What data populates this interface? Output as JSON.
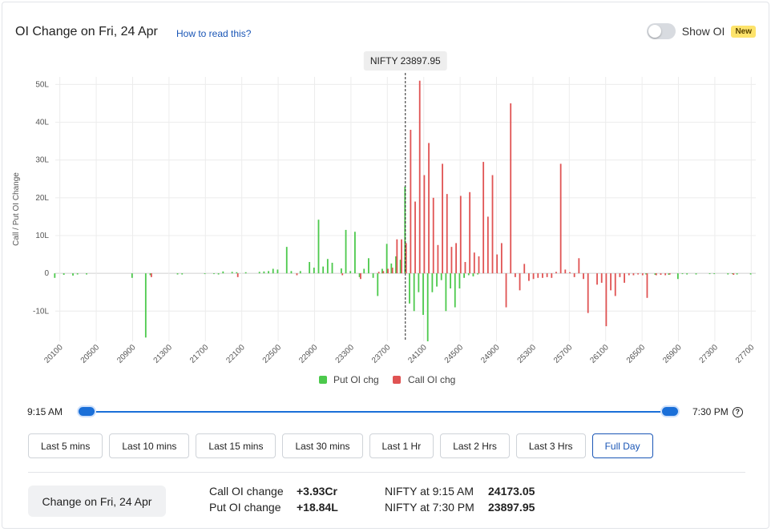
{
  "header": {
    "title": "OI Change on Fri, 24 Apr",
    "how_to_link": "How to read this?",
    "toggle_label": "Show OI",
    "badge": "New"
  },
  "chart_data": {
    "type": "bar",
    "ylabel": "Call / Put OI Change",
    "ylim": [
      -18,
      52
    ],
    "y_ticks": [
      50,
      40,
      30,
      20,
      10,
      0,
      -10
    ],
    "y_tick_labels": [
      "50L",
      "40L",
      "30L",
      "20L",
      "10L",
      "0",
      "-10L"
    ],
    "x_range": [
      20050,
      27750
    ],
    "x_ticks": [
      20100,
      20500,
      20900,
      21300,
      21700,
      22100,
      22500,
      22900,
      23300,
      23700,
      24100,
      24500,
      24900,
      25300,
      25700,
      26100,
      26500,
      26900,
      27300,
      27700
    ],
    "strike_step": 50,
    "marker": {
      "label": "NIFTY 23897.95",
      "x": 23897.95
    },
    "legend": [
      "Put OI chg",
      "Call OI chg"
    ],
    "legend_position": "bottom",
    "colors": {
      "put": "#4cc94c",
      "call": "#e05353"
    },
    "series": [
      {
        "name": "Put OI chg",
        "points": [
          [
            20050,
            -1.2
          ],
          [
            20150,
            -0.4
          ],
          [
            20250,
            -0.6
          ],
          [
            20300,
            -0.3
          ],
          [
            20400,
            -0.3
          ],
          [
            20900,
            -1.2
          ],
          [
            21050,
            -17
          ],
          [
            21100,
            -0.5
          ],
          [
            21400,
            -0.3
          ],
          [
            21450,
            -0.3
          ],
          [
            21700,
            -0.2
          ],
          [
            21800,
            -0.2
          ],
          [
            21850,
            -0.3
          ],
          [
            21900,
            0.5
          ],
          [
            22000,
            0.4
          ],
          [
            22050,
            0.3
          ],
          [
            22150,
            0.3
          ],
          [
            22300,
            0.4
          ],
          [
            22350,
            0.5
          ],
          [
            22400,
            0.6
          ],
          [
            22450,
            1.2
          ],
          [
            22500,
            1
          ],
          [
            22600,
            7
          ],
          [
            22650,
            0.6
          ],
          [
            22750,
            0.6
          ],
          [
            22850,
            3
          ],
          [
            22900,
            1.5
          ],
          [
            22950,
            14.2
          ],
          [
            23000,
            1.8
          ],
          [
            23050,
            3.8
          ],
          [
            23100,
            2.8
          ],
          [
            23200,
            1.3
          ],
          [
            23250,
            11.5
          ],
          [
            23300,
            0.6
          ],
          [
            23350,
            11
          ],
          [
            23400,
            -1
          ],
          [
            23450,
            1.2
          ],
          [
            23500,
            4
          ],
          [
            23550,
            -1.2
          ],
          [
            23600,
            -6
          ],
          [
            23650,
            1.2
          ],
          [
            23700,
            7.8
          ],
          [
            23750,
            2.6
          ],
          [
            23800,
            4.5
          ],
          [
            23850,
            3.6
          ],
          [
            23900,
            23
          ],
          [
            23950,
            -8
          ],
          [
            24000,
            -10
          ],
          [
            24050,
            -5
          ],
          [
            24100,
            -11
          ],
          [
            24150,
            -18
          ],
          [
            24200,
            -5
          ],
          [
            24250,
            -3.5
          ],
          [
            24300,
            -1.8
          ],
          [
            24350,
            -10
          ],
          [
            24400,
            -4
          ],
          [
            24450,
            -9
          ],
          [
            24500,
            -4
          ],
          [
            24550,
            -1.2
          ],
          [
            24600,
            -0.5
          ],
          [
            24650,
            -0.8
          ],
          [
            24700,
            -0.3
          ],
          [
            26550,
            -0.3
          ],
          [
            26650,
            -0.4
          ],
          [
            26800,
            -0.4
          ],
          [
            26900,
            -1.5
          ],
          [
            26950,
            -0.2
          ],
          [
            27000,
            -0.3
          ],
          [
            27100,
            -0.3
          ],
          [
            27250,
            -0.2
          ],
          [
            27300,
            -0.2
          ],
          [
            27450,
            -0.3
          ],
          [
            27500,
            -0.2
          ],
          [
            27550,
            -0.3
          ],
          [
            27700,
            -0.3
          ]
        ]
      },
      {
        "name": "Call OI chg",
        "points": [
          [
            21100,
            -1
          ],
          [
            22050,
            -1
          ],
          [
            22700,
            -0.5
          ],
          [
            23200,
            -0.5
          ],
          [
            23400,
            -1.5
          ],
          [
            23600,
            0.4
          ],
          [
            23650,
            0.6
          ],
          [
            23700,
            1.2
          ],
          [
            23750,
            1.5
          ],
          [
            23800,
            9
          ],
          [
            23850,
            9
          ],
          [
            23900,
            8
          ],
          [
            23950,
            38
          ],
          [
            24000,
            19
          ],
          [
            24050,
            51
          ],
          [
            24100,
            26
          ],
          [
            24150,
            34.5
          ],
          [
            24200,
            20
          ],
          [
            24250,
            7.5
          ],
          [
            24300,
            29
          ],
          [
            24350,
            21
          ],
          [
            24400,
            7
          ],
          [
            24450,
            8
          ],
          [
            24500,
            20.5
          ],
          [
            24550,
            3
          ],
          [
            24600,
            21.5
          ],
          [
            24650,
            5.5
          ],
          [
            24700,
            4.5
          ],
          [
            24750,
            29.5
          ],
          [
            24800,
            15
          ],
          [
            24850,
            26
          ],
          [
            24900,
            5
          ],
          [
            24950,
            8
          ],
          [
            25000,
            -9
          ],
          [
            25050,
            45
          ],
          [
            25100,
            -1
          ],
          [
            25150,
            -4.5
          ],
          [
            25200,
            2.5
          ],
          [
            25250,
            -2
          ],
          [
            25300,
            -1.5
          ],
          [
            25350,
            -1.2
          ],
          [
            25400,
            -1.2
          ],
          [
            25450,
            -1
          ],
          [
            25500,
            -1.2
          ],
          [
            25550,
            0.4
          ],
          [
            25600,
            29
          ],
          [
            25650,
            1
          ],
          [
            25700,
            0.3
          ],
          [
            25750,
            -1
          ],
          [
            25800,
            4
          ],
          [
            25850,
            -1.5
          ],
          [
            25900,
            -10.5
          ],
          [
            26000,
            -3
          ],
          [
            26050,
            -2.5
          ],
          [
            26100,
            -14
          ],
          [
            26150,
            -4.5
          ],
          [
            26200,
            -6
          ],
          [
            26250,
            -1
          ],
          [
            26300,
            -2.5
          ],
          [
            26350,
            -0.5
          ],
          [
            26400,
            -0.5
          ],
          [
            26450,
            -0.3
          ],
          [
            26500,
            -0.5
          ],
          [
            26550,
            -6.5
          ],
          [
            26650,
            -0.5
          ],
          [
            26700,
            -0.4
          ],
          [
            26750,
            -0.5
          ],
          [
            26800,
            -0.3
          ],
          [
            27500,
            -0.4
          ]
        ]
      }
    ]
  },
  "slider": {
    "start_label": "9:15 AM",
    "end_label": "7:30 PM",
    "help_icon": "question-circle-icon"
  },
  "ranges": [
    {
      "label": "Last 5 mins",
      "active": false
    },
    {
      "label": "Last 10 mins",
      "active": false
    },
    {
      "label": "Last 15 mins",
      "active": false
    },
    {
      "label": "Last 30 mins",
      "active": false
    },
    {
      "label": "Last 1 Hr",
      "active": false
    },
    {
      "label": "Last 2 Hrs",
      "active": false
    },
    {
      "label": "Last 3 Hrs",
      "active": false
    },
    {
      "label": "Full Day",
      "active": true
    }
  ],
  "summary": {
    "change_button": "Change on Fri, 24 Apr",
    "call_label": "Call OI change",
    "call_value": "+3.93Cr",
    "put_label": "Put OI change",
    "put_value": "+18.84L",
    "nifty_start_label": "NIFTY at 9:15 AM",
    "nifty_start_value": "24173.05",
    "nifty_end_label": "NIFTY at 7:30 PM",
    "nifty_end_value": "23897.95"
  }
}
